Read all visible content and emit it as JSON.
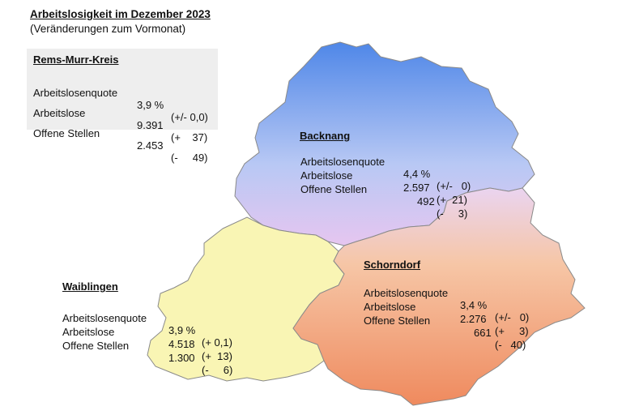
{
  "title": "Arbeitslosigkeit im Dezember 2023",
  "subtitle": "(Veränderungen zum Vormonat)",
  "colors": {
    "backnang_top": "#4f87e8",
    "backnang_bottom": "#e6c6f0",
    "waiblingen": "#f9f5b4",
    "schorndorf_top": "#ead4f0",
    "schorndorf_bottom": "#ef8a5e",
    "summary_bg": "#eeeeee",
    "outline": "#8a8a8a"
  },
  "summary": {
    "name": "Rems-Murr-Kreis",
    "rows": [
      {
        "label": "Arbeitslosenquote",
        "value": "3,9 %",
        "change": "(+/- 0,0)"
      },
      {
        "label": "Arbeitslose",
        "value": "9.391",
        "change": "(+    37)"
      },
      {
        "label": "Offene Stellen",
        "value": "2.453",
        "change": "(-     49)"
      }
    ]
  },
  "regions": {
    "backnang": {
      "name": "Backnang",
      "rows": [
        {
          "label": "Arbeitslosenquote",
          "value": "4,4 %",
          "change": "(+/-   0)"
        },
        {
          "label": "Arbeitslose",
          "value": "2.597",
          "change": "(+  21)"
        },
        {
          "label": "Offene Stellen",
          "value": "492",
          "change": "(-     3)"
        }
      ]
    },
    "schorndorf": {
      "name": "Schorndorf",
      "rows": [
        {
          "label": "Arbeitslosenquote",
          "value": "3,4 %",
          "change": "(+/-   0)"
        },
        {
          "label": "Arbeitslose",
          "value": "2.276",
          "change": "(+     3)"
        },
        {
          "label": "Offene Stellen",
          "value": "661",
          "change": "(-   40)"
        }
      ]
    },
    "waiblingen": {
      "name": "Waiblingen",
      "rows": [
        {
          "label": "Arbeitslosenquote",
          "value": "3,9 %",
          "change": "(+ 0,1)"
        },
        {
          "label": "Arbeitslose",
          "value": "4.518",
          "change": "(+  13)"
        },
        {
          "label": "Offene Stellen",
          "value": "1.300",
          "change": "(-     6)"
        }
      ]
    }
  }
}
